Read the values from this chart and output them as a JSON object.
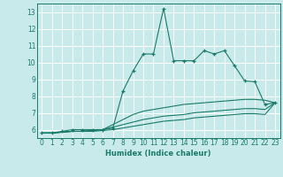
{
  "xlabel": "Humidex (Indice chaleur)",
  "ylabel": "",
  "background_color": "#c8eaea",
  "grid_color": "#ffffff",
  "line_color": "#1a7a6a",
  "xlim": [
    -0.5,
    23.5
  ],
  "ylim": [
    5.5,
    13.5
  ],
  "xticks": [
    0,
    1,
    2,
    3,
    4,
    5,
    6,
    7,
    8,
    9,
    10,
    11,
    12,
    13,
    14,
    15,
    16,
    17,
    18,
    19,
    20,
    21,
    22,
    23
  ],
  "yticks": [
    6,
    7,
    8,
    9,
    10,
    11,
    12,
    13
  ],
  "series": {
    "line1_x": [
      0,
      1,
      2,
      3,
      4,
      5,
      6,
      7,
      8,
      9,
      10,
      11,
      12,
      13,
      14,
      15,
      16,
      17,
      18,
      19,
      20,
      21,
      22,
      23
    ],
    "line1_y": [
      5.8,
      5.8,
      5.9,
      6.0,
      6.0,
      6.0,
      6.0,
      6.1,
      8.3,
      9.5,
      10.5,
      10.5,
      13.2,
      10.1,
      10.1,
      10.1,
      10.7,
      10.5,
      10.7,
      9.8,
      8.9,
      8.85,
      7.5,
      7.6
    ],
    "line2_x": [
      0,
      1,
      2,
      3,
      4,
      5,
      6,
      7,
      8,
      9,
      10,
      11,
      12,
      13,
      14,
      15,
      16,
      17,
      18,
      19,
      20,
      21,
      22,
      23
    ],
    "line2_y": [
      5.8,
      5.8,
      5.85,
      5.9,
      5.9,
      5.95,
      6.0,
      6.3,
      6.6,
      6.9,
      7.1,
      7.2,
      7.3,
      7.4,
      7.5,
      7.55,
      7.6,
      7.65,
      7.7,
      7.75,
      7.8,
      7.8,
      7.75,
      7.6
    ],
    "line3_x": [
      0,
      1,
      2,
      3,
      4,
      5,
      6,
      7,
      8,
      9,
      10,
      11,
      12,
      13,
      14,
      15,
      16,
      17,
      18,
      19,
      20,
      21,
      22,
      23
    ],
    "line3_y": [
      5.8,
      5.8,
      5.85,
      5.9,
      5.9,
      5.95,
      6.0,
      6.15,
      6.3,
      6.45,
      6.6,
      6.7,
      6.8,
      6.85,
      6.9,
      7.0,
      7.05,
      7.1,
      7.15,
      7.2,
      7.25,
      7.25,
      7.2,
      7.6
    ],
    "line4_x": [
      0,
      1,
      2,
      3,
      4,
      5,
      6,
      7,
      8,
      9,
      10,
      11,
      12,
      13,
      14,
      15,
      16,
      17,
      18,
      19,
      20,
      21,
      22,
      23
    ],
    "line4_y": [
      5.8,
      5.8,
      5.85,
      5.9,
      5.9,
      5.9,
      5.95,
      6.0,
      6.1,
      6.2,
      6.3,
      6.4,
      6.5,
      6.55,
      6.6,
      6.7,
      6.75,
      6.8,
      6.85,
      6.9,
      6.95,
      6.95,
      6.9,
      7.6
    ]
  }
}
